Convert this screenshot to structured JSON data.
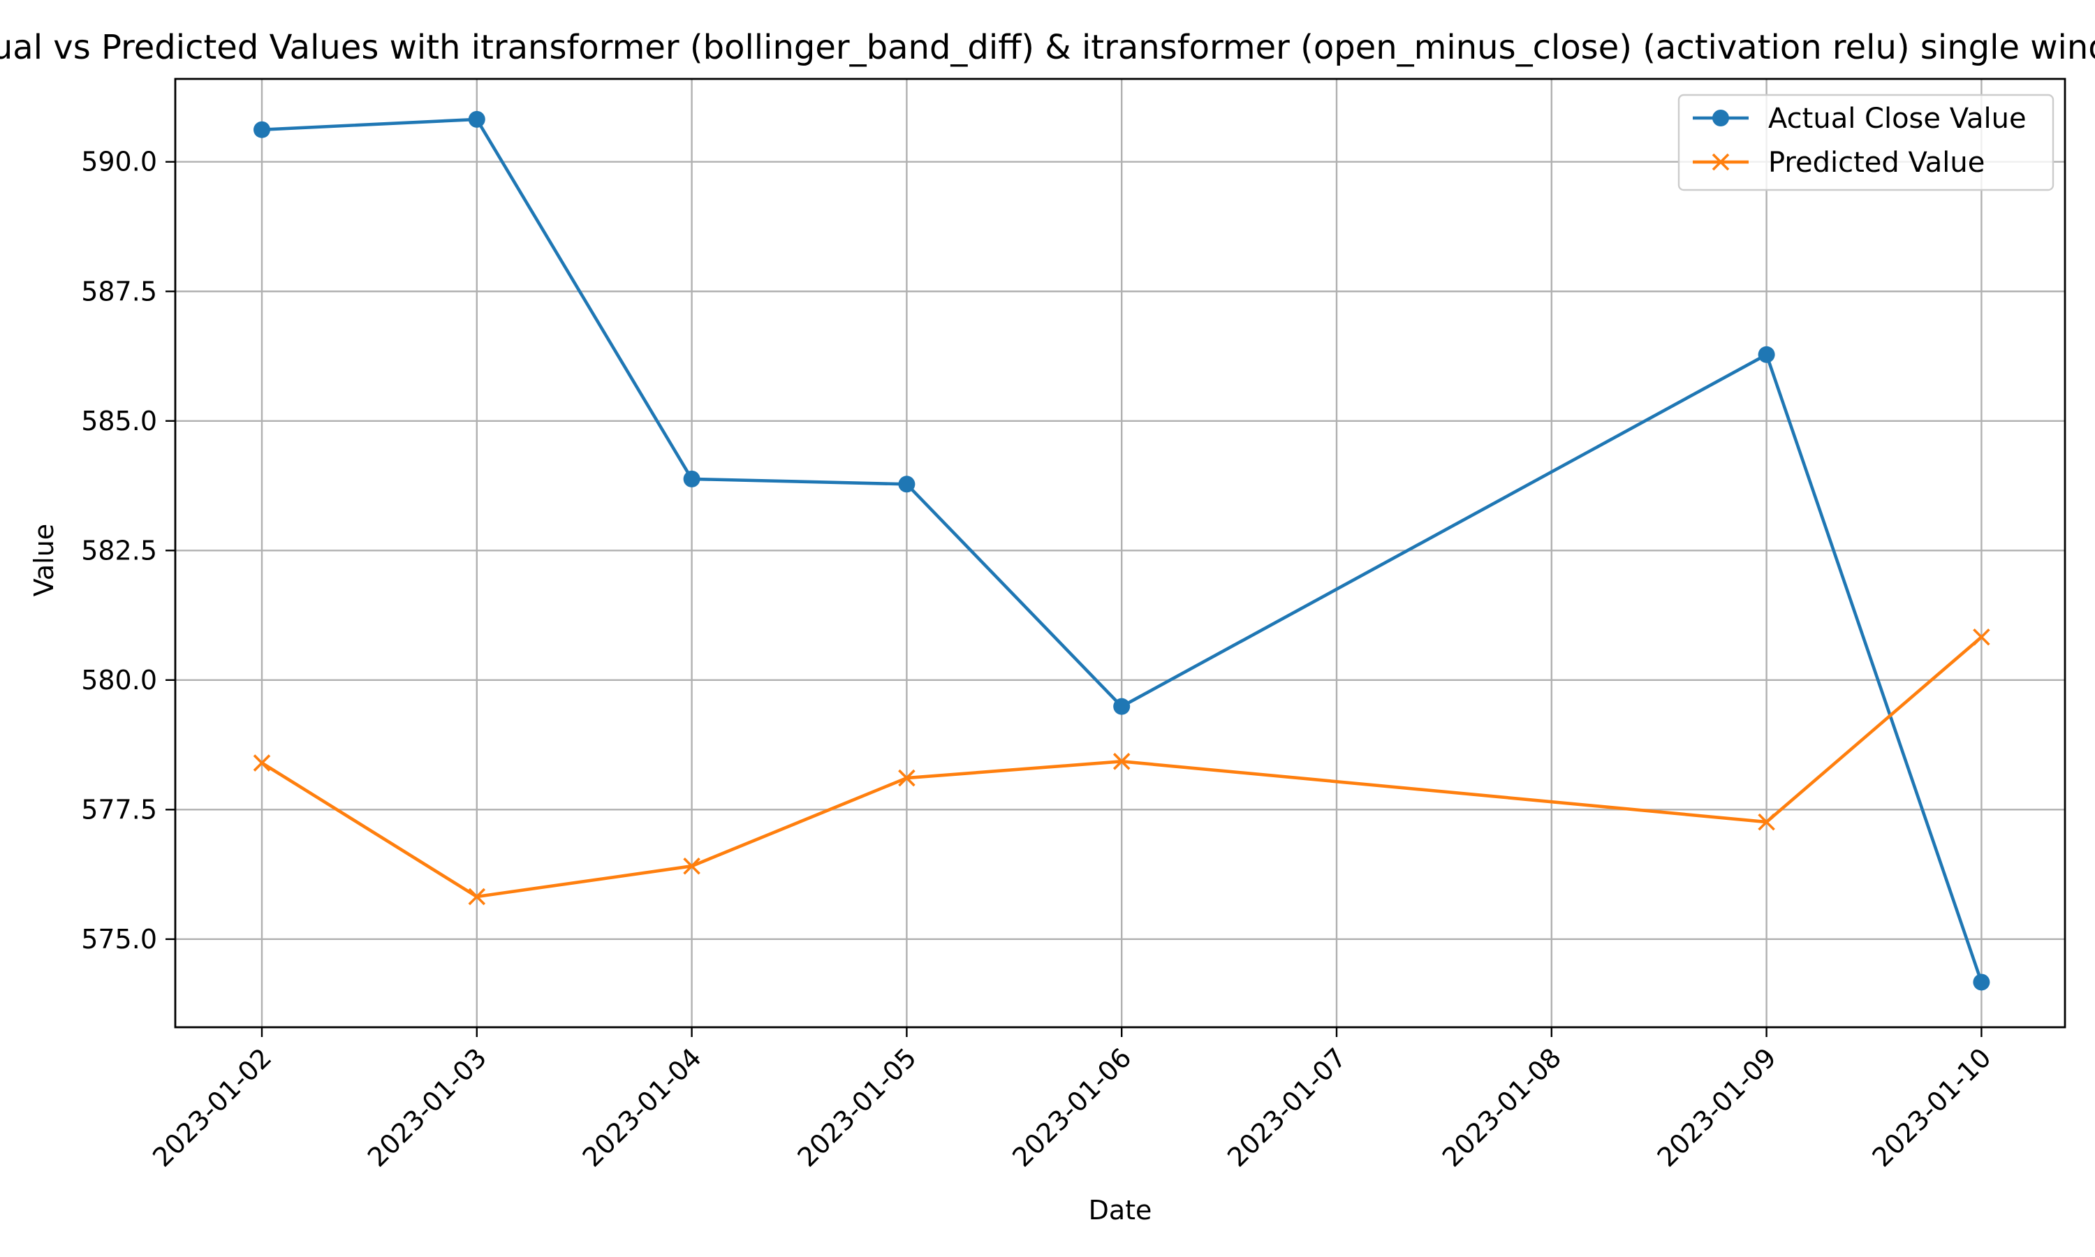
{
  "chart_data": {
    "type": "line",
    "title": "Actual vs Predicted Values with itransformer (bollinger_band_diff) &  itransformer (open_minus_close) (activation relu) single window",
    "xlabel": "Date",
    "ylabel": "Value",
    "x": [
      "2023-01-02",
      "2023-01-03",
      "2023-01-04",
      "2023-01-05",
      "2023-01-06",
      "2023-01-07",
      "2023-01-08",
      "2023-01-09",
      "2023-01-10"
    ],
    "x_ticks": [
      "2023-01-02",
      "2023-01-03",
      "2023-01-04",
      "2023-01-05",
      "2023-01-06",
      "2023-01-07",
      "2023-01-08",
      "2023-01-09",
      "2023-01-10"
    ],
    "ylim": [
      573.3,
      591.6
    ],
    "y_ticks": [
      "575.0",
      "577.5",
      "580.0",
      "582.5",
      "585.0",
      "587.5",
      "590.0"
    ],
    "y_tick_values": [
      575.0,
      577.5,
      580.0,
      582.5,
      585.0,
      587.5,
      590.0
    ],
    "grid": true,
    "legend_position": "top-right",
    "series": [
      {
        "name": "Actual Close Value",
        "color": "#1f77b4",
        "marker": "circle",
        "points": [
          {
            "x": "2023-01-02",
            "y": 590.62
          },
          {
            "x": "2023-01-03",
            "y": 590.82
          },
          {
            "x": "2023-01-04",
            "y": 583.88
          },
          {
            "x": "2023-01-05",
            "y": 583.78
          },
          {
            "x": "2023-01-06",
            "y": 579.49
          },
          {
            "x": "2023-01-09",
            "y": 586.28
          },
          {
            "x": "2023-01-10",
            "y": 574.17
          }
        ]
      },
      {
        "name": "Predicted Value",
        "color": "#ff7f0e",
        "marker": "x",
        "points": [
          {
            "x": "2023-01-02",
            "y": 578.4
          },
          {
            "x": "2023-01-03",
            "y": 575.82
          },
          {
            "x": "2023-01-04",
            "y": 576.41
          },
          {
            "x": "2023-01-05",
            "y": 578.11
          },
          {
            "x": "2023-01-06",
            "y": 578.43
          },
          {
            "x": "2023-01-09",
            "y": 577.26
          },
          {
            "x": "2023-01-10",
            "y": 580.83
          }
        ]
      }
    ]
  }
}
